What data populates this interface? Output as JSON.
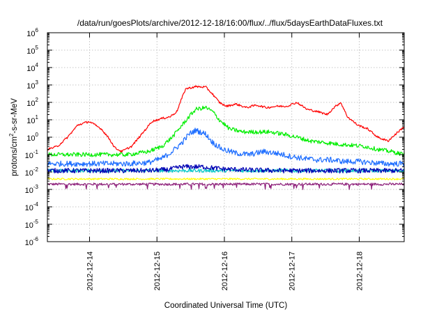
{
  "chart_data": {
    "type": "line",
    "title": "/data/run/goesPlots/archive/2012-12-18/16:00/flux/../flux/5daysEarthDataFluxes.txt",
    "xlabel": "Coordinated Universal Time (UTC)",
    "ylabel": {
      "pre": "protons/cm",
      "sup": "2",
      "post": "-s-sr-MeV"
    },
    "yscale": "log",
    "ylim_exp": [
      -6,
      6
    ],
    "y_ticks": [
      {
        "base": "10",
        "exp": "6"
      },
      {
        "base": "10",
        "exp": "5"
      },
      {
        "base": "10",
        "exp": "4"
      },
      {
        "base": "10",
        "exp": "3"
      },
      {
        "base": "10",
        "exp": "2"
      },
      {
        "base": "10",
        "exp": "1"
      },
      {
        "base": "10",
        "exp": "0"
      },
      {
        "base": "10",
        "exp": "-1"
      },
      {
        "base": "10",
        "exp": "-2"
      },
      {
        "base": "10",
        "exp": "-3"
      },
      {
        "base": "10",
        "exp": "-4"
      },
      {
        "base": "10",
        "exp": "-5"
      },
      {
        "base": "10",
        "exp": "-6"
      }
    ],
    "xlim_days": [
      "2012-12-13 09:00",
      "2012-12-18 16:00"
    ],
    "x_ticks": [
      "2012-12-14",
      "2012-12-15",
      "2012-12-16",
      "2012-12-17",
      "2012-12-18"
    ],
    "grid": true,
    "legend": "none",
    "series": [
      {
        "color": "#ff0000",
        "x_day": [
          0,
          0.15,
          0.3,
          0.45,
          0.62,
          0.8,
          0.92,
          1.0,
          1.1,
          1.25,
          1.4,
          1.55,
          1.7,
          1.82,
          1.92,
          2.0,
          2.05,
          2.2,
          2.35,
          2.45,
          2.55,
          2.65,
          2.8,
          2.95,
          3.1,
          3.25,
          3.4,
          3.55,
          3.7,
          3.85,
          4.0,
          4.15,
          4.25,
          4.35,
          4.45,
          4.6,
          4.75,
          4.9,
          5.05,
          5.2,
          5.29
        ],
        "y": [
          0.2,
          0.3,
          1.0,
          5,
          8,
          3,
          0.8,
          0.25,
          0.15,
          0.3,
          1.5,
          8,
          12,
          15,
          30,
          200,
          600,
          800,
          750,
          300,
          100,
          60,
          80,
          50,
          70,
          50,
          60,
          60,
          100,
          40,
          30,
          20,
          50,
          100,
          15,
          5,
          3,
          1,
          0.6,
          2,
          4
        ]
      },
      {
        "color": "#00ee00",
        "x_day": [
          0,
          0.3,
          0.6,
          0.9,
          1.2,
          1.5,
          1.7,
          1.85,
          2.0,
          2.1,
          2.2,
          2.35,
          2.45,
          2.55,
          2.7,
          2.9,
          3.1,
          3.3,
          3.5,
          3.7,
          3.9,
          4.1,
          4.3,
          4.5,
          4.7,
          4.9,
          5.1,
          5.29
        ],
        "y": [
          0.1,
          0.1,
          0.1,
          0.1,
          0.1,
          0.15,
          0.3,
          1,
          5,
          15,
          40,
          50,
          30,
          10,
          3,
          2,
          2,
          2,
          1.5,
          1,
          0.6,
          0.5,
          0.4,
          0.35,
          0.3,
          0.2,
          0.15,
          0.1
        ]
      },
      {
        "color": "#1e6eff",
        "x_day": [
          0,
          0.3,
          0.6,
          0.9,
          1.2,
          1.5,
          1.7,
          1.85,
          2.0,
          2.1,
          2.2,
          2.35,
          2.45,
          2.6,
          2.8,
          3.0,
          3.2,
          3.4,
          3.6,
          3.8,
          4.0,
          4.2,
          4.4,
          4.6,
          4.8,
          5.0,
          5.29
        ],
        "y": [
          0.03,
          0.03,
          0.03,
          0.03,
          0.03,
          0.035,
          0.06,
          0.15,
          0.5,
          1.5,
          2.5,
          1.5,
          0.5,
          0.2,
          0.12,
          0.1,
          0.15,
          0.12,
          0.08,
          0.06,
          0.05,
          0.05,
          0.04,
          0.04,
          0.035,
          0.03,
          0.03
        ]
      },
      {
        "color": "#0000b4",
        "x_day": [
          0,
          0.5,
          1.0,
          1.5,
          1.8,
          2.0,
          2.3,
          2.6,
          3.0,
          3.5,
          4.0,
          4.5,
          5.0,
          5.29
        ],
        "y": [
          0.012,
          0.012,
          0.012,
          0.012,
          0.014,
          0.02,
          0.02,
          0.015,
          0.013,
          0.012,
          0.012,
          0.012,
          0.012,
          0.012
        ]
      },
      {
        "color": "#00c8c8",
        "x_day": [
          0,
          1.0,
          2.0,
          3.0,
          4.0,
          5.0,
          5.29
        ],
        "y": [
          0.012,
          0.012,
          0.012,
          0.012,
          0.012,
          0.012,
          0.012
        ]
      },
      {
        "color": "#ffff00",
        "x_day": [
          0,
          1.0,
          2.0,
          3.0,
          4.0,
          5.0,
          5.29
        ],
        "y": [
          0.004,
          0.004,
          0.004,
          0.004,
          0.004,
          0.004,
          0.004
        ]
      },
      {
        "color": "#8c1e78",
        "x_day": [
          0,
          1.0,
          2.0,
          3.0,
          4.0,
          5.0,
          5.29
        ],
        "y": [
          0.002,
          0.002,
          0.002,
          0.002,
          0.002,
          0.002,
          0.002
        ]
      }
    ]
  }
}
